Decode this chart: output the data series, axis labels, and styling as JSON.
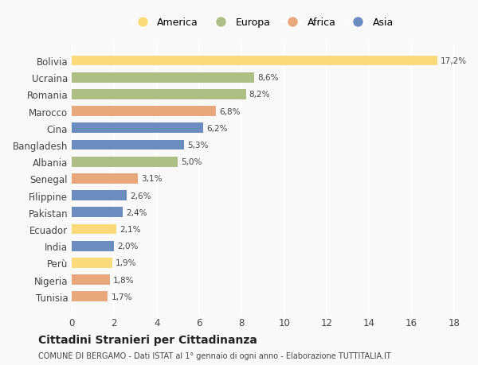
{
  "countries": [
    "Tunisia",
    "Nigeria",
    "Perù",
    "India",
    "Ecuador",
    "Pakistan",
    "Filippine",
    "Senegal",
    "Albania",
    "Bangladesh",
    "Cina",
    "Marocco",
    "Romania",
    "Ucraina",
    "Bolivia"
  ],
  "values": [
    1.7,
    1.8,
    1.9,
    2.0,
    2.1,
    2.4,
    2.6,
    3.1,
    5.0,
    5.3,
    6.2,
    6.8,
    8.2,
    8.6,
    17.2
  ],
  "continents": [
    "Africa",
    "Africa",
    "America",
    "Asia",
    "America",
    "Asia",
    "Asia",
    "Africa",
    "Europa",
    "Asia",
    "Asia",
    "Africa",
    "Europa",
    "Europa",
    "America"
  ],
  "colors": {
    "America": "#FBDA7A",
    "Europa": "#AEBF85",
    "Africa": "#E8A87C",
    "Asia": "#6B8CBE"
  },
  "legend_order": [
    "America",
    "Europa",
    "Africa",
    "Asia"
  ],
  "xlim": [
    0,
    18
  ],
  "xticks": [
    0,
    2,
    4,
    6,
    8,
    10,
    12,
    14,
    16,
    18
  ],
  "title": "Cittadini Stranieri per Cittadinanza",
  "subtitle": "COMUNE DI BERGAMO - Dati ISTAT al 1° gennaio di ogni anno - Elaborazione TUTTITALIA.IT",
  "background_color": "#f9f9f9",
  "grid_color": "#ffffff",
  "bar_height": 0.6
}
